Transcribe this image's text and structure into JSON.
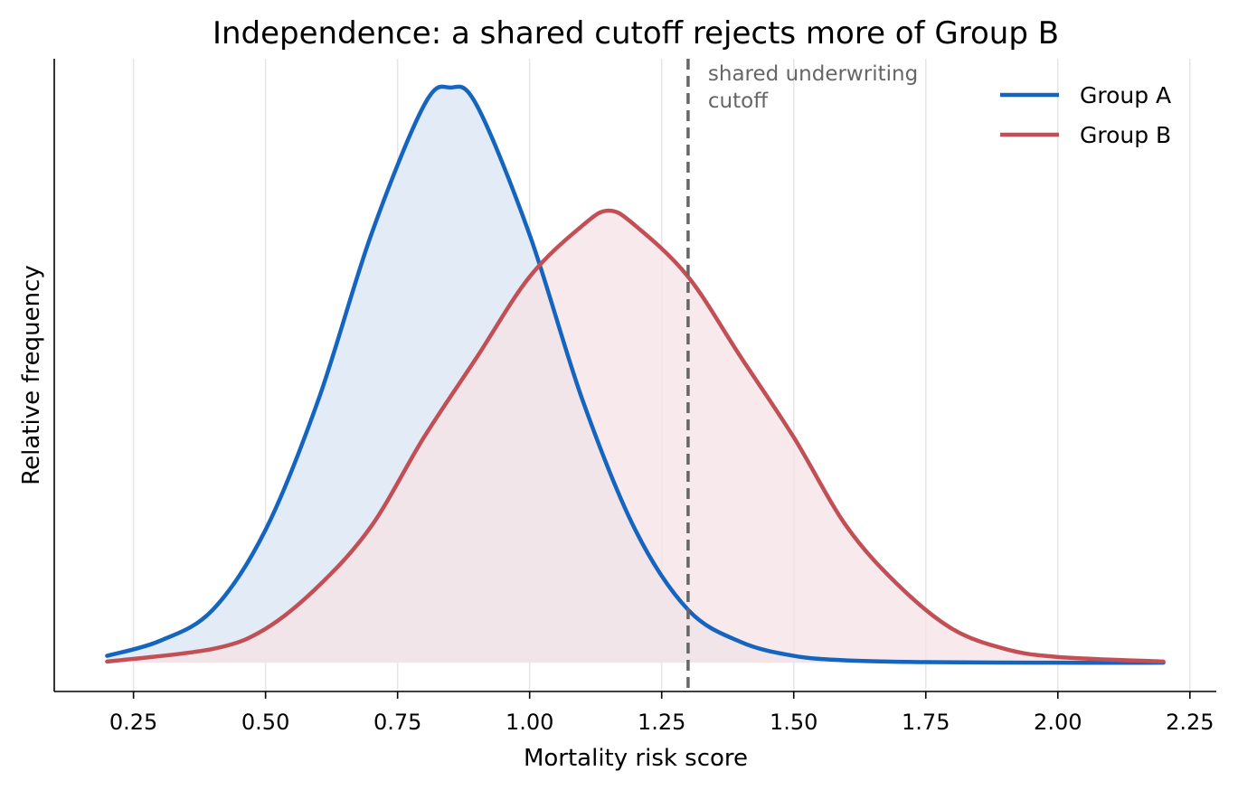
{
  "chart_data": {
    "type": "area",
    "title": "Independence: a shared cutoff rejects more of Group B",
    "xlabel": "Mortality risk score",
    "ylabel": "Relative frequency",
    "xlim": [
      0.1,
      2.3
    ],
    "ylim": [
      -0.05,
      1.05
    ],
    "x_ticks": [
      0.25,
      0.5,
      0.75,
      1.0,
      1.25,
      1.5,
      1.75,
      2.0,
      2.25
    ],
    "x_tick_labels": [
      "0.25",
      "0.50",
      "0.75",
      "1.00",
      "1.25",
      "1.50",
      "1.75",
      "2.00",
      "2.25"
    ],
    "grid": "vertical",
    "legend_position": "top-right",
    "x_range": [
      0.2,
      2.2
    ],
    "series": [
      {
        "name": "Group A",
        "color": "#1565c0",
        "fill": "#e2ebf6",
        "x": [
          0.2,
          0.3,
          0.4,
          0.5,
          0.6,
          0.7,
          0.8,
          0.85,
          0.9,
          1.0,
          1.1,
          1.2,
          1.3,
          1.4,
          1.5,
          1.6,
          1.75,
          2.0,
          2.2
        ],
        "y": [
          0.012,
          0.038,
          0.092,
          0.231,
          0.457,
          0.744,
          0.969,
          1.0,
          0.969,
          0.744,
          0.457,
          0.231,
          0.092,
          0.036,
          0.012,
          0.004,
          0.001,
          0.0,
          0.0
        ]
      },
      {
        "name": "Group B",
        "color": "#c24f55",
        "fill": "#f5e3e5",
        "x": [
          0.2,
          0.4,
          0.5,
          0.6,
          0.7,
          0.8,
          0.9,
          1.0,
          1.1,
          1.15,
          1.2,
          1.3,
          1.4,
          1.5,
          1.6,
          1.7,
          1.8,
          1.9,
          2.0,
          2.2
        ],
        "y": [
          0.002,
          0.024,
          0.059,
          0.133,
          0.237,
          0.392,
          0.531,
          0.671,
          0.76,
          0.786,
          0.76,
          0.671,
          0.531,
          0.392,
          0.237,
          0.133,
          0.059,
          0.024,
          0.01,
          0.002
        ]
      }
    ],
    "cutoff": {
      "x": 1.3,
      "label_lines": [
        "shared underwriting",
        "cutoff"
      ],
      "color": "#666666"
    }
  }
}
